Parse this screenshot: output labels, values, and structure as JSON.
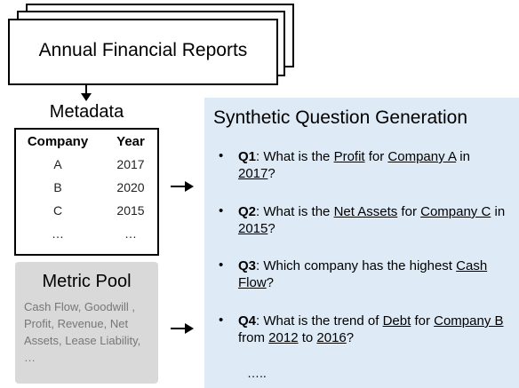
{
  "header": {
    "title": "Annual Financial Reports"
  },
  "metadata": {
    "title": "Metadata",
    "columns": [
      "Company",
      "Year"
    ],
    "rows": [
      [
        "A",
        "2017"
      ],
      [
        "B",
        "2020"
      ],
      [
        "C",
        "2015"
      ],
      [
        "…",
        "…"
      ]
    ]
  },
  "metric_pool": {
    "title": "Metric Pool",
    "text": "Cash Flow, Goodwill , Profit, Revenue, Net Assets, Lease Liability, …"
  },
  "questions": {
    "title": "Synthetic Question Generation",
    "items": [
      [
        {
          "b": "Q1"
        },
        ": What is the ",
        {
          "u": "Profit"
        },
        " for ",
        {
          "u": "Company A"
        },
        " in ",
        {
          "u": "2017"
        },
        "?"
      ],
      [
        {
          "b": "Q2"
        },
        ": What is the ",
        {
          "u": "Net Assets"
        },
        " for ",
        {
          "u": "Company C"
        },
        " in ",
        {
          "u": "2015"
        },
        "?"
      ],
      [
        {
          "b": "Q3"
        },
        ": Which company has the highest ",
        {
          "u": "Cash Flow"
        },
        "?"
      ],
      [
        {
          "b": "Q4"
        },
        ": What is the trend of ",
        {
          "u": "Debt"
        },
        " for ",
        {
          "u": "Company B"
        },
        " from ",
        {
          "u": "2012"
        },
        " to ",
        {
          "u": "2016"
        },
        "?"
      ]
    ],
    "more": "….."
  }
}
